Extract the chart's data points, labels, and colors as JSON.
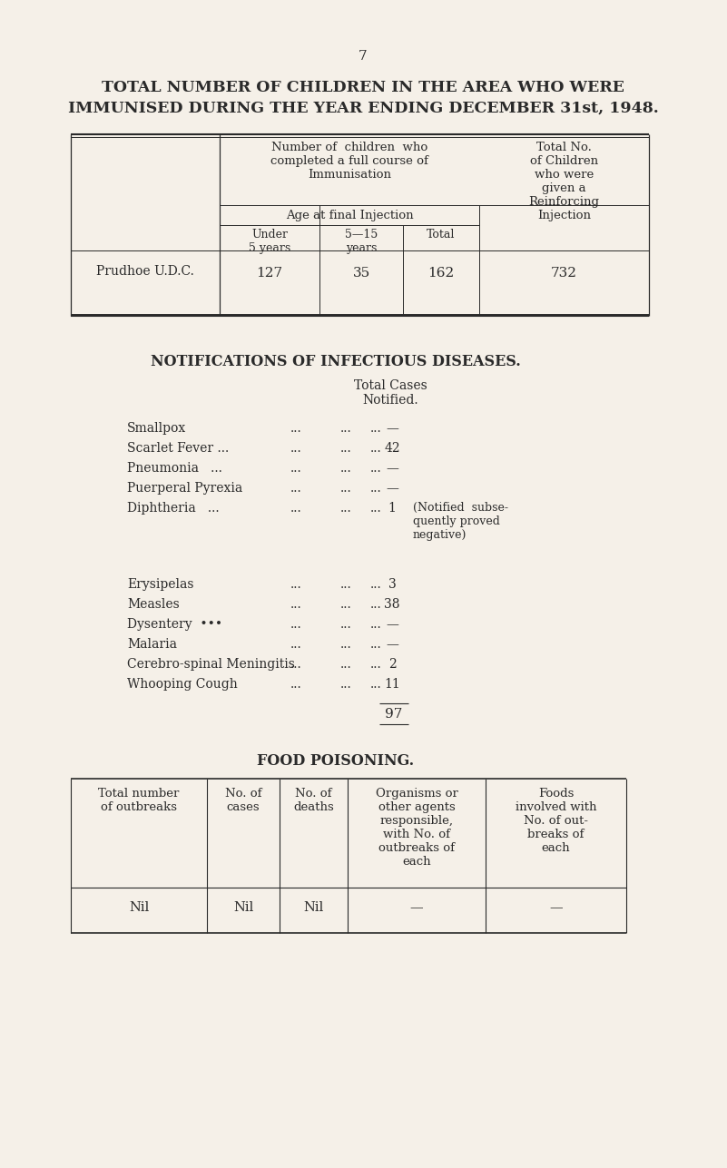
{
  "bg_color": "#f5f0e8",
  "text_color": "#2a2a2a",
  "page_number": "7",
  "title_line1": "TOTAL NUMBER OF CHILDREN IN THE AREA WHO WERE",
  "title_line2": "IMMUNISED DURING THE YEAR ENDING DECEMBER 31st, 1948.",
  "diseases": [
    {
      "name": "Smallpox",
      "value": "—",
      "note": ""
    },
    {
      "name": "Scarlet Fever ...",
      "value": "42",
      "note": ""
    },
    {
      "name": "Pneumonia   ...",
      "value": "—",
      "note": ""
    },
    {
      "name": "Puerperal Pyrexia",
      "value": "—",
      "note": ""
    },
    {
      "name": "Diphtheria   ...",
      "value": "1",
      "note": "(Notified  subse-\nquently proved\nnegative)"
    },
    {
      "name": "Erysipelas",
      "value": "3",
      "note": ""
    },
    {
      "name": "Measles",
      "value": "38",
      "note": ""
    },
    {
      "name": "Dysentery  •••",
      "value": "—",
      "note": ""
    },
    {
      "name": "Malaria",
      "value": "—",
      "note": ""
    },
    {
      "name": "Cerebro-spinal Meningitis",
      "value": "2",
      "note": ""
    },
    {
      "name": "Whooping Cough",
      "value": "11",
      "note": ""
    }
  ],
  "total_value": "97",
  "food_headers": [
    "Total number\nof outbreaks",
    "No. of\ncases",
    "No. of\ndeaths",
    "Organisms or\nother agents\nresponsible,\nwith No. of\noutbreaks of\neach",
    "Foods\ninvolved with\nNo. of out-\nbreaks of\neach"
  ],
  "food_data": [
    "Nil",
    "Nil",
    "Nil",
    "—",
    "—"
  ]
}
